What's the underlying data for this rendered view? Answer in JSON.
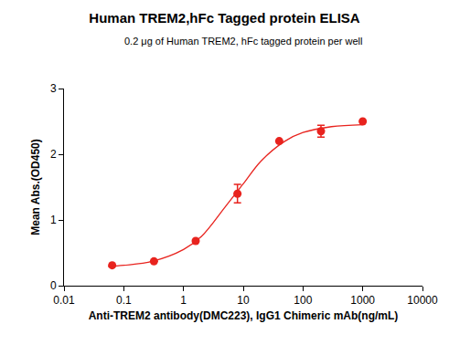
{
  "chart_data": {
    "type": "scatter",
    "title": "Human TREM2,hFc Tagged protein ELISA",
    "subtitle": "0.2 μg of Human TREM2, hFc tagged protein per well",
    "x_label": "Anti-TREM2 antibody(DMC223), IgG1 Chimeric mAb(ng/mL)",
    "y_label": "Mean Abs.(OD450)",
    "log": "x",
    "grid": false,
    "xlim": [
      0.01,
      10000
    ],
    "xticks": [
      0.01,
      0.1,
      1,
      10,
      100,
      1000,
      10000
    ],
    "ylim": [
      0,
      3
    ],
    "yticks": [
      0,
      1,
      2,
      3
    ],
    "series": [
      {
        "type": "scatter",
        "marker": "circle",
        "color": "#e8231e",
        "x": [
          0.064,
          0.32,
          1.6,
          8,
          40,
          200,
          1000
        ],
        "values": [
          0.31,
          0.37,
          0.68,
          1.4,
          2.2,
          2.35,
          2.5
        ],
        "errors": [
          null,
          null,
          null,
          0.14,
          null,
          0.09,
          null
        ]
      },
      {
        "type": "line",
        "line_style": "solid",
        "color": "#e8231e",
        "x": [
          0.055,
          0.1,
          0.3,
          1,
          2,
          5,
          10,
          20,
          50,
          100,
          300,
          1000
        ],
        "values": [
          0.29,
          0.31,
          0.37,
          0.55,
          0.75,
          1.2,
          1.55,
          1.9,
          2.2,
          2.33,
          2.42,
          2.45
        ]
      }
    ]
  }
}
